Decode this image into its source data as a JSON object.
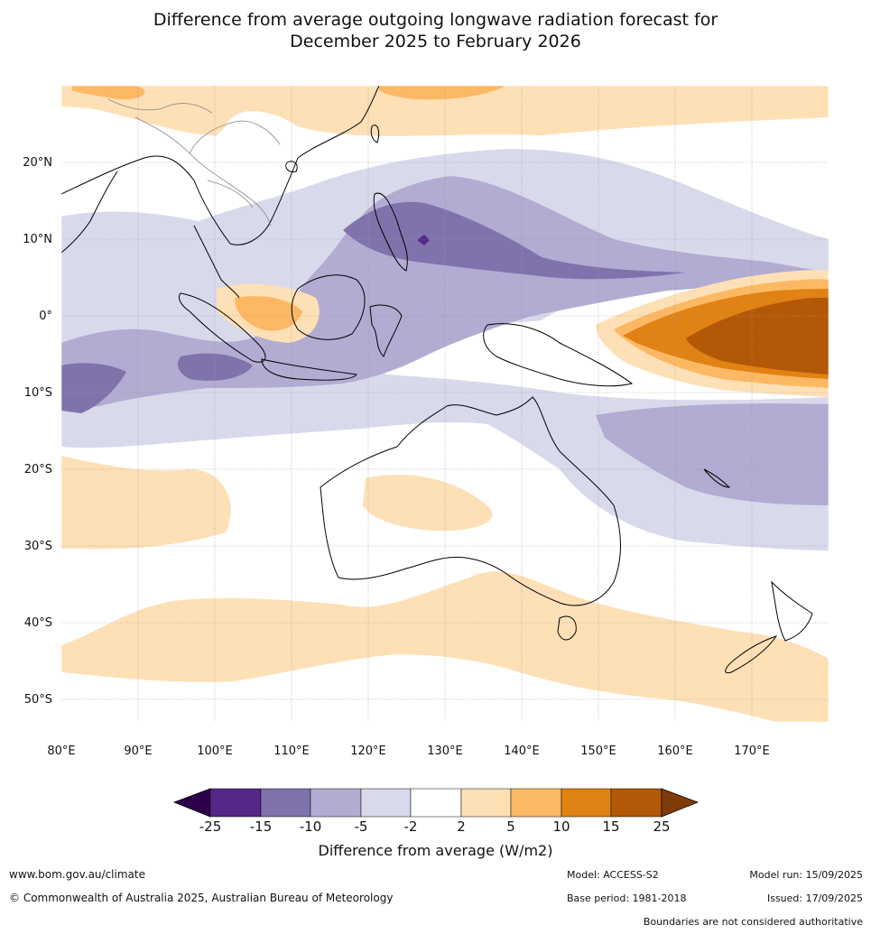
{
  "title": {
    "line1": "Difference from average outgoing longwave radiation forecast for",
    "line2": "December 2025 to February 2026"
  },
  "map": {
    "lat_labels": [
      "20°N",
      "10°N",
      "0°",
      "10°S",
      "20°S",
      "30°S",
      "40°S",
      "50°S"
    ],
    "lon_labels": [
      "80°E",
      "90°E",
      "100°E",
      "110°E",
      "120°E",
      "130°E",
      "140°E",
      "150°E",
      "160°E",
      "170°E"
    ],
    "colors": {
      "neg25": "#2d004b",
      "neg20": "#542788",
      "neg15": "#8073ac",
      "neg10": "#b2abd2",
      "neg5": "#d8daeb",
      "neutral": "#ffffff",
      "pos2": "#fee0b6",
      "pos5": "#fdb863",
      "pos10": "#e08214",
      "pos15": "#b35806",
      "pos25": "#7f3b08"
    }
  },
  "colorbar": {
    "ticks": [
      "-25",
      "-15",
      "-10",
      "-5",
      "-2",
      "2",
      "5",
      "10",
      "15",
      "25"
    ],
    "title": "Difference from average (W/m2)"
  },
  "footer": {
    "website": "www.bom.gov.au/climate",
    "copyright": "© Commonwealth of Australia 2025, Australian Bureau of Meteorology",
    "model": "Model: ACCESS-S2",
    "base_period": "Base period: 1981-2018",
    "model_run": "Model run: 15/09/2025",
    "issued": "Issued: 17/09/2025",
    "disclaimer": "Boundaries are not considered authoritative"
  }
}
